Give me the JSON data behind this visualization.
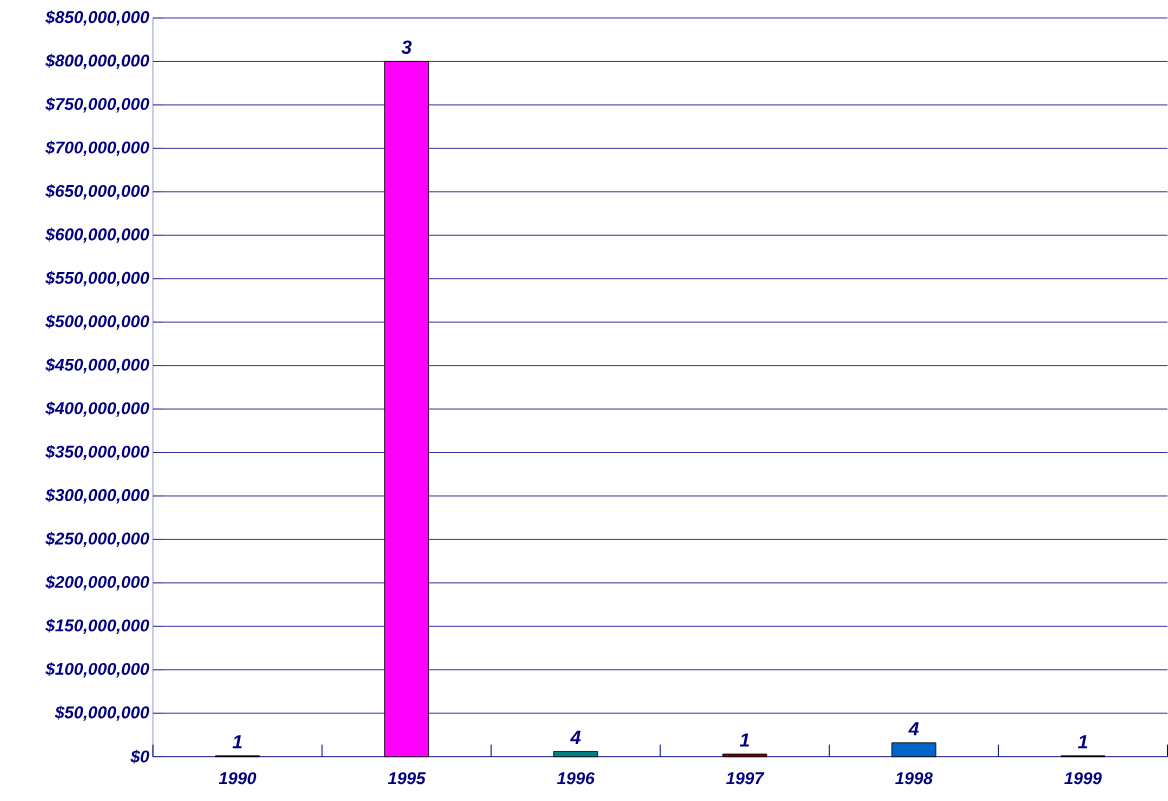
{
  "chart_data": {
    "type": "bar",
    "categories": [
      "1990",
      "1995",
      "1996",
      "1997",
      "1998",
      "1999"
    ],
    "values": [
      1000000,
      800000000,
      6000000,
      3000000,
      16000000,
      1000000
    ],
    "colors": [
      "#000000",
      "#ff00ff",
      "#008080",
      "#800000",
      "#0066cc",
      "#000000"
    ],
    "annotations": [
      {
        "text": "1",
        "x": "1990",
        "y": 1000000
      },
      {
        "text": "3",
        "x": "1995",
        "y": 800000000
      },
      {
        "text": "4",
        "x": "1996",
        "y": 6000000
      },
      {
        "text": "1",
        "x": "1997",
        "y": 3000000
      },
      {
        "text": "4",
        "x": "1998",
        "y": 16000000
      },
      {
        "text": "1",
        "x": "1999",
        "y": 1000000
      }
    ],
    "ylim": [
      0,
      850000000
    ],
    "yticks": [
      {
        "value": 0,
        "label": "$0"
      },
      {
        "value": 50000000,
        "label": "$50,000,000"
      },
      {
        "value": 100000000,
        "label": "$100,000,000"
      },
      {
        "value": 150000000,
        "label": "$150,000,000"
      },
      {
        "value": 200000000,
        "label": "$200,000,000"
      },
      {
        "value": 250000000,
        "label": "$250,000,000"
      },
      {
        "value": 300000000,
        "label": "$300,000,000"
      },
      {
        "value": 350000000,
        "label": "$350,000,000"
      },
      {
        "value": 400000000,
        "label": "$400,000,000"
      },
      {
        "value": 450000000,
        "label": "$450,000,000"
      },
      {
        "value": 500000000,
        "label": "$500,000,000"
      },
      {
        "value": 550000000,
        "label": "$550,000,000"
      },
      {
        "value": 600000000,
        "label": "$600,000,000"
      },
      {
        "value": 650000000,
        "label": "$650,000,000"
      },
      {
        "value": 700000000,
        "label": "$700,000,000"
      },
      {
        "value": 750000000,
        "label": "$750,000,000"
      },
      {
        "value": 800000000,
        "label": "$800,000,000"
      },
      {
        "value": 850000000,
        "label": "$850,000,000"
      }
    ],
    "grid": "y"
  }
}
